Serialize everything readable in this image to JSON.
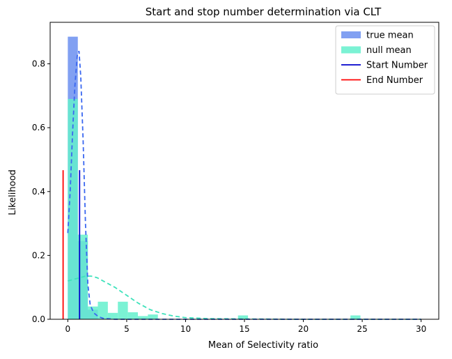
{
  "colors": {
    "true_hist": "#6b8ff0",
    "null_hist": "#64f0cc",
    "true_kde": "#3a67f0",
    "null_kde": "#3ee2bb",
    "start_line": "#0000cc",
    "end_line": "#ff0000"
  },
  "chart_data": {
    "type": "bar",
    "title": "Start and stop number determination via CLT",
    "xlabel": "Mean of Selectivity ratio",
    "ylabel": "Likelihood",
    "xlim": [
      -1.5,
      31.5
    ],
    "ylim": [
      0,
      0.93
    ],
    "xticks": [
      0,
      5,
      10,
      15,
      20,
      25,
      30
    ],
    "xtick_labels": [
      "0",
      "5",
      "10",
      "15",
      "20",
      "25",
      "30"
    ],
    "yticks": [
      0.0,
      0.2,
      0.4,
      0.6,
      0.8
    ],
    "ytick_labels": [
      "0.0",
      "0.2",
      "0.4",
      "0.6",
      "0.8"
    ],
    "legend": {
      "placement": "top-right",
      "entries": [
        {
          "label": "true mean",
          "kind": "patch",
          "color_key": "true_hist"
        },
        {
          "label": " null mean",
          "kind": "patch",
          "color_key": "null_hist"
        },
        {
          "label": "Start Number",
          "kind": "line",
          "color_key": "start_line"
        },
        {
          "label": "End Number",
          "kind": "line",
          "color_key": "end_line"
        }
      ]
    },
    "series": [
      {
        "name": "true mean",
        "kind": "histogram",
        "bin_width": 0.85,
        "bins": [
          {
            "x": 0.0,
            "value": 0.885
          },
          {
            "x": 0.85,
            "value": 0.245
          },
          {
            "x": 1.7,
            "value": 0.03
          }
        ]
      },
      {
        "name": " null mean",
        "kind": "histogram",
        "bin_width": 0.85,
        "bins": [
          {
            "x": 0.0,
            "value": 0.69
          },
          {
            "x": 0.85,
            "value": 0.265
          },
          {
            "x": 1.7,
            "value": 0.04
          },
          {
            "x": 2.55,
            "value": 0.055
          },
          {
            "x": 3.4,
            "value": 0.02
          },
          {
            "x": 4.25,
            "value": 0.055
          },
          {
            "x": 5.1,
            "value": 0.022
          },
          {
            "x": 5.95,
            "value": 0.01
          },
          {
            "x": 6.8,
            "value": 0.015
          },
          {
            "x": 14.45,
            "value": 0.012
          },
          {
            "x": 24.0,
            "value": 0.012
          }
        ]
      }
    ],
    "kde_true": [
      [
        0.0,
        0.27
      ],
      [
        0.2,
        0.4
      ],
      [
        0.4,
        0.58
      ],
      [
        0.6,
        0.73
      ],
      [
        0.8,
        0.825
      ],
      [
        0.95,
        0.84
      ],
      [
        1.1,
        0.76
      ],
      [
        1.3,
        0.56
      ],
      [
        1.5,
        0.3
      ],
      [
        1.7,
        0.11
      ],
      [
        1.9,
        0.045
      ],
      [
        2.2,
        0.02
      ],
      [
        2.6,
        0.008
      ],
      [
        3.0,
        0.003
      ],
      [
        4.0,
        0.0
      ],
      [
        8.0,
        0.0
      ],
      [
        30.0,
        0.0
      ]
    ],
    "kde_null": [
      [
        0.0,
        0.12
      ],
      [
        0.5,
        0.125
      ],
      [
        1.0,
        0.13
      ],
      [
        1.5,
        0.135
      ],
      [
        2.0,
        0.135
      ],
      [
        2.5,
        0.13
      ],
      [
        3.0,
        0.12
      ],
      [
        4.0,
        0.1
      ],
      [
        5.0,
        0.075
      ],
      [
        6.0,
        0.05
      ],
      [
        7.0,
        0.03
      ],
      [
        8.0,
        0.018
      ],
      [
        9.0,
        0.01
      ],
      [
        10.0,
        0.005
      ],
      [
        12.0,
        0.002
      ],
      [
        15.0,
        0.001
      ],
      [
        20.0,
        0.0
      ],
      [
        25.0,
        0.0
      ],
      [
        30.0,
        0.0
      ]
    ],
    "vlines": [
      {
        "name": "Start Number",
        "x": 1.0,
        "ymax": 0.467,
        "color_key": "start_line"
      },
      {
        "name": "End Number",
        "x": -0.4,
        "ymax": 0.467,
        "color_key": "end_line"
      }
    ]
  }
}
